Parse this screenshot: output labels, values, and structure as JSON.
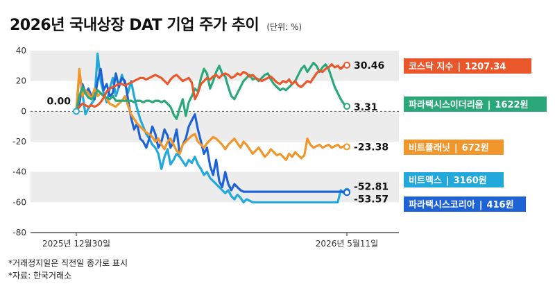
{
  "title": "2026년 국내상장 DAT 기업 주가 추이",
  "unit": "(단위: %)",
  "footnotes": [
    "*거래정지일은 직전일 종가로 표시",
    "*자료: 한국거래소"
  ],
  "chart_data": {
    "type": "line",
    "ylim": [
      -80,
      40
    ],
    "yticks": [
      40,
      20,
      0,
      -20,
      -40,
      -60,
      -80
    ],
    "x_start_label": "2025년 12월30일",
    "x_end_label": "2026년 5월11일",
    "start_value_label": "0.00",
    "n_points": 90,
    "series": [
      {
        "name": "코스닥 지수",
        "price": "1207.34",
        "color": "#E9572B",
        "final_label": "30.46",
        "values": [
          0,
          3,
          5,
          4,
          3,
          4,
          3,
          4,
          6,
          9,
          13,
          15,
          16,
          17,
          18,
          18,
          17,
          18,
          19,
          20,
          21,
          22,
          22,
          21,
          22,
          23,
          24,
          23,
          22,
          20,
          18,
          21,
          23,
          24,
          22,
          20,
          21,
          22,
          19,
          8,
          12,
          18,
          20,
          22,
          21,
          23,
          24,
          22,
          24,
          25,
          24,
          22,
          23,
          25,
          24,
          26,
          25,
          23,
          24,
          22,
          21,
          20,
          21,
          22,
          23,
          21,
          19,
          18,
          20,
          19,
          21,
          18,
          20,
          17,
          16,
          18,
          20,
          19,
          22,
          25,
          27,
          26,
          28,
          29,
          31,
          29,
          30,
          28,
          30,
          30.46
        ]
      },
      {
        "name": "파라택시스이더리움",
        "price": "1622원",
        "color": "#2BA87A",
        "final_label": "3.31",
        "values": [
          0,
          10,
          16,
          12,
          9,
          8,
          10,
          14,
          12,
          10,
          9,
          8,
          10,
          7,
          7,
          7,
          7,
          7,
          7,
          6,
          7,
          7,
          6,
          7,
          7,
          6,
          7,
          7,
          6,
          7,
          5,
          3,
          -2,
          -5,
          2,
          8,
          -3,
          6,
          10,
          15,
          13,
          22,
          28,
          25,
          15,
          20,
          26,
          30,
          25,
          23,
          16,
          10,
          8,
          12,
          16,
          20,
          22,
          24,
          21,
          22,
          20,
          22,
          24,
          25,
          21,
          18,
          16,
          14,
          15,
          14,
          16,
          18,
          20,
          24,
          28,
          30,
          26,
          29,
          32,
          30,
          26,
          29,
          31,
          28,
          22,
          16,
          12,
          8,
          5,
          3.31
        ]
      },
      {
        "name": "비트플래닛",
        "price": "672원",
        "color": "#F0962A",
        "final_label": "-23.38",
        "values": [
          0,
          28,
          10,
          14,
          12,
          8,
          15,
          10,
          12,
          10,
          8,
          5,
          4,
          3,
          5,
          7,
          10,
          4,
          -2,
          -5,
          -8,
          -10,
          -12,
          -14,
          -15,
          -17,
          -20,
          -18,
          -22,
          -25,
          -20,
          -18,
          -22,
          -26,
          -28,
          -22,
          -20,
          -18,
          -16,
          -15,
          -20,
          -22,
          -24,
          -21,
          -19,
          -17,
          -18,
          -20,
          -22,
          -25,
          -22,
          -20,
          -18,
          -21,
          -24,
          -20,
          -22,
          -25,
          -28,
          -26,
          -24,
          -27,
          -30,
          -28,
          -25,
          -27,
          -29,
          -28,
          -30,
          -32,
          -28,
          -30,
          -27,
          -29,
          -31,
          -29,
          -18,
          -22,
          -24,
          -23,
          -22,
          -24,
          -23,
          -22,
          -24,
          -23,
          -22,
          -24,
          -23,
          -23.38
        ]
      },
      {
        "name": "비트맥스",
        "price": "3160원",
        "color": "#22A8DB",
        "final_label": "-52.81",
        "values": [
          0,
          25,
          12,
          -2,
          2,
          5,
          8,
          38,
          20,
          12,
          6,
          15,
          22,
          10,
          16,
          24,
          18,
          12,
          20,
          10,
          2,
          -5,
          -10,
          -15,
          -18,
          -22,
          -24,
          -28,
          -38,
          -30,
          -25,
          -35,
          -32,
          -28,
          -30,
          -33,
          -36,
          -32,
          -34,
          -30,
          -35,
          -38,
          -42,
          -40,
          -44,
          -46,
          -48,
          -50,
          -52,
          -54,
          -52,
          -56,
          -58,
          -55,
          -57,
          -60,
          -58,
          -59,
          -60,
          -60,
          -60,
          -60,
          -60,
          -60,
          -60,
          -60,
          -60,
          -60,
          -60,
          -60,
          -60,
          -60,
          -60,
          -60,
          -60,
          -60,
          -60,
          -60,
          -60,
          -60,
          -60,
          -60,
          -60,
          -60,
          -60,
          -60,
          -60,
          -52,
          -54,
          -52.81
        ]
      },
      {
        "name": "파라택시스코리아",
        "price": "416원",
        "color": "#1E63D6",
        "final_label": "-53.57",
        "values": [
          0,
          5,
          18,
          12,
          15,
          10,
          8,
          20,
          28,
          14,
          18,
          10,
          12,
          25,
          16,
          22,
          20,
          8,
          -4,
          -12,
          -8,
          -18,
          -20,
          -24,
          -18,
          -10,
          -15,
          -24,
          -20,
          -12,
          -16,
          -24,
          -20,
          -12,
          -28,
          -22,
          -18,
          -10,
          -6,
          -2,
          -12,
          -20,
          -28,
          -24,
          -36,
          -42,
          -32,
          -46,
          -50,
          -40,
          -48,
          -52,
          -48,
          -50,
          -52,
          -53,
          -53,
          -53,
          -53,
          -53,
          -53,
          -53,
          -53,
          -53,
          -53,
          -53,
          -53,
          -53,
          -53,
          -53,
          -53,
          -53,
          -53,
          -53,
          -53,
          -53,
          -53,
          -53,
          -53,
          -53,
          -53,
          -53,
          -53,
          -53,
          -53,
          -53,
          -53,
          -53,
          -53,
          -53.57
        ]
      }
    ]
  }
}
